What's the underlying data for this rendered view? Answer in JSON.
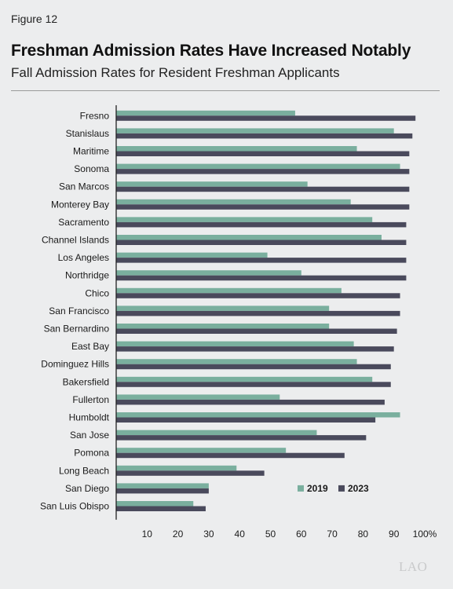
{
  "figure_label": "Figure 12",
  "title": "Freshman Admission Rates Have Increased Notably",
  "subtitle": "Fall Admission Rates for Resident Freshman Applicants",
  "watermark": "LAO",
  "colors": {
    "series_2019": "#7aaf9e",
    "series_2023": "#4a4a5c",
    "axis": "#222222",
    "background": "#ecedee"
  },
  "chart_data": {
    "type": "bar",
    "orientation": "horizontal",
    "categories": [
      "Fresno",
      "Stanislaus",
      "Maritime",
      "Sonoma",
      "San Marcos",
      "Monterey Bay",
      "Sacramento",
      "Channel Islands",
      "Los Angeles",
      "Northridge",
      "Chico",
      "San Francisco",
      "San Bernardino",
      "East Bay",
      "Dominguez Hills",
      "Bakersfield",
      "Fullerton",
      "Humboldt",
      "San Jose",
      "Pomona",
      "Long Beach",
      "San Diego",
      "San Luis Obispo"
    ],
    "series": [
      {
        "name": "2019",
        "values": [
          58,
          90,
          78,
          92,
          62,
          76,
          83,
          86,
          49,
          60,
          73,
          69,
          69,
          77,
          78,
          83,
          53,
          92,
          65,
          55,
          39,
          30,
          25
        ]
      },
      {
        "name": "2023",
        "values": [
          97,
          96,
          95,
          95,
          95,
          95,
          94,
          94,
          94,
          94,
          92,
          92,
          91,
          90,
          89,
          89,
          87,
          84,
          81,
          74,
          48,
          30,
          29
        ]
      }
    ],
    "xlim": [
      0,
      100
    ],
    "xticks": [
      10,
      20,
      30,
      40,
      50,
      60,
      70,
      80,
      90,
      100
    ],
    "tick_labels": [
      "10",
      "20",
      "30",
      "40",
      "50",
      "60",
      "70",
      "80",
      "90",
      "100%"
    ],
    "grid": false,
    "legend_position": "bottom-right"
  }
}
